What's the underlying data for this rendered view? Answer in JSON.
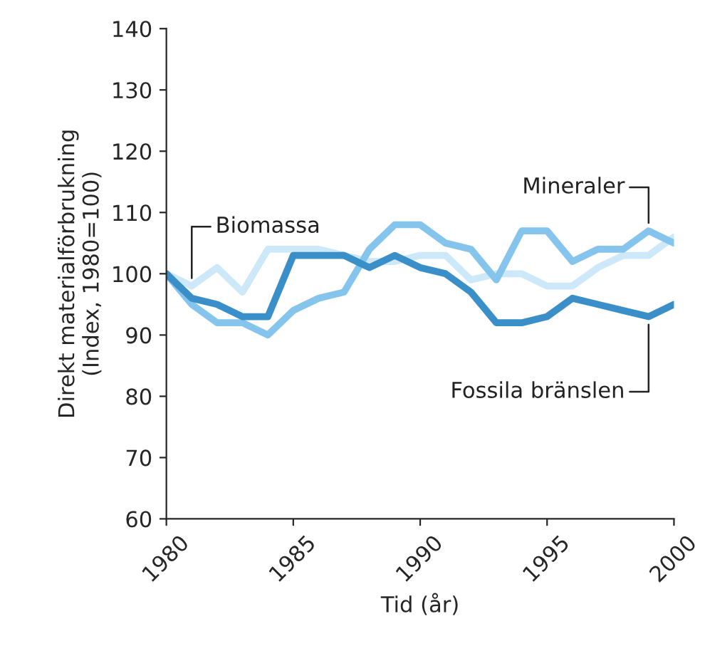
{
  "chart_data": {
    "type": "line",
    "xlabel": "Tid (år)",
    "ylabel": "Direkt materialförbrukning\n(Index, 1980=100)",
    "x": [
      1980,
      1981,
      1982,
      1983,
      1984,
      1985,
      1986,
      1987,
      1988,
      1989,
      1990,
      1991,
      1992,
      1993,
      1994,
      1995,
      1996,
      1997,
      1998,
      1999,
      2000
    ],
    "series": [
      {
        "name": "Biomassa",
        "color": "#cde8f9",
        "values": [
          100,
          98,
          101,
          97,
          104,
          104,
          104,
          103,
          102,
          102,
          103,
          103,
          99,
          100,
          100,
          98,
          98,
          101,
          103,
          103,
          106
        ]
      },
      {
        "name": "Mineraler",
        "color": "#85c4ec",
        "values": [
          100,
          95,
          92,
          92,
          90,
          94,
          96,
          97,
          104,
          108,
          108,
          105,
          104,
          99,
          107,
          107,
          102,
          104,
          104,
          107,
          105
        ]
      },
      {
        "name": "Fossila bränslen",
        "color": "#3a8fc8",
        "values": [
          100,
          96,
          95,
          93,
          93,
          103,
          103,
          103,
          101,
          103,
          101,
          100,
          97,
          92,
          92,
          93,
          96,
          95,
          94,
          93,
          95
        ]
      }
    ],
    "xlim": [
      1980,
      2000
    ],
    "xticks": [
      1980,
      1985,
      1990,
      1995,
      2000
    ],
    "ylim": [
      60,
      140
    ],
    "yticks": [
      60,
      70,
      80,
      90,
      100,
      110,
      120,
      130,
      140
    ],
    "grid": false,
    "legend": false,
    "marker": "none",
    "line_style": "solid"
  }
}
